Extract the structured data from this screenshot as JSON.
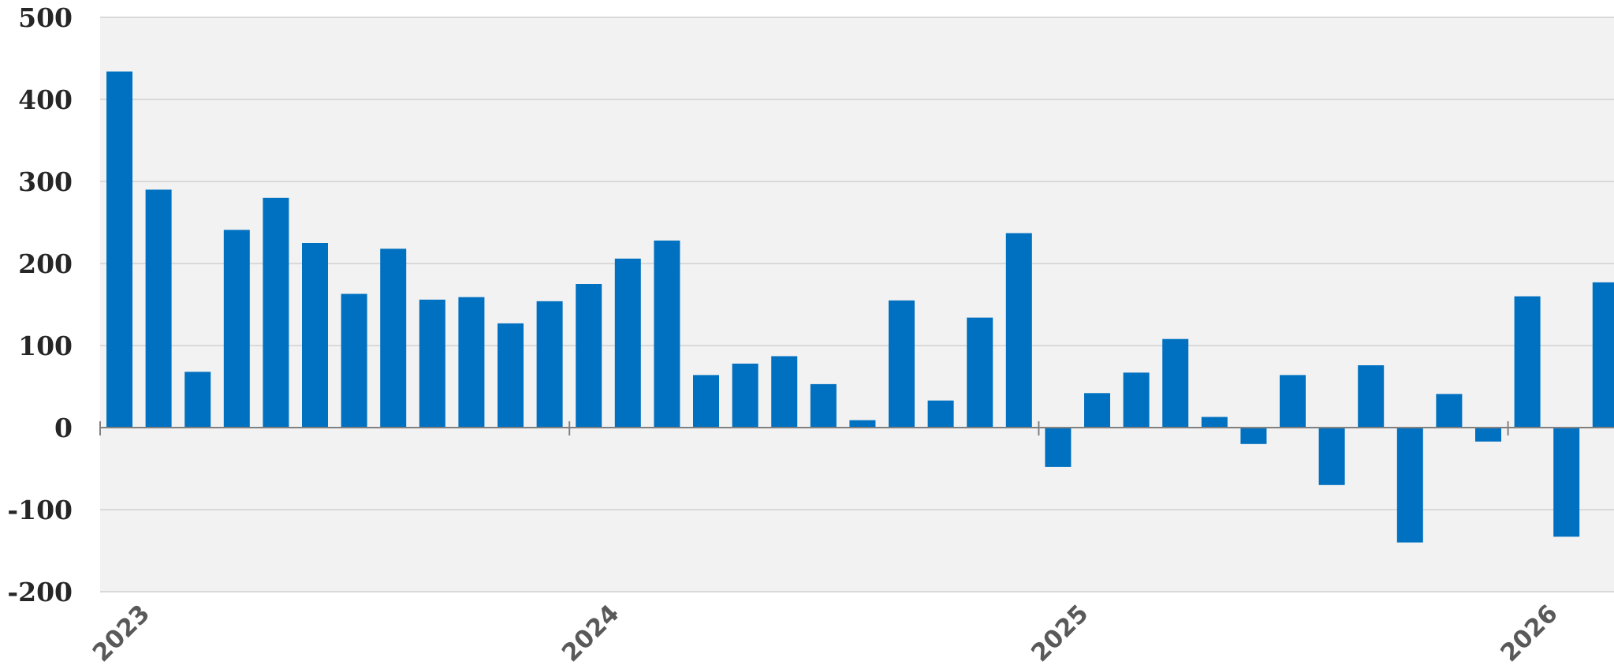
{
  "chart_data": {
    "type": "bar",
    "title": "",
    "xlabel": "",
    "ylabel": "",
    "ylim": [
      -200,
      500
    ],
    "yticks": [
      500,
      400,
      300,
      200,
      100,
      0,
      -100,
      -200
    ],
    "ytick_labels": [
      "500",
      "400",
      "300",
      "200",
      "100",
      "0",
      "-100",
      "-200"
    ],
    "xticks": [
      "2023",
      "2024",
      "2025",
      "2026"
    ],
    "grid": true,
    "legend": "none",
    "colors": {
      "bar": "#0070C0",
      "plot_background": "#F2F2F2",
      "gridline": "#D9D9D9",
      "zero_line": "#808080",
      "tick_text": "#262626",
      "year_text": "#595959"
    },
    "x": [
      "2023-01",
      "2023-02",
      "2023-03",
      "2023-04",
      "2023-05",
      "2023-06",
      "2023-07",
      "2023-08",
      "2023-09",
      "2023-10",
      "2023-11",
      "2023-12",
      "2024-01",
      "2024-02",
      "2024-03",
      "2024-04",
      "2024-05",
      "2024-06",
      "2024-07",
      "2024-08",
      "2024-09",
      "2024-10",
      "2024-11",
      "2024-12",
      "2025-01",
      "2025-02",
      "2025-03",
      "2025-04",
      "2025-05",
      "2025-06",
      "2025-07",
      "2025-08",
      "2025-09",
      "2025-10",
      "2025-11",
      "2025-12",
      "2026-01",
      "2026-02",
      "2026-03"
    ],
    "values": [
      434,
      290,
      68,
      241,
      280,
      225,
      163,
      218,
      156,
      159,
      127,
      154,
      175,
      206,
      228,
      64,
      78,
      87,
      53,
      9,
      155,
      33,
      134,
      237,
      -48,
      42,
      67,
      108,
      13,
      -20,
      64,
      -70,
      76,
      -140,
      41,
      -17,
      160,
      -133,
      177
    ]
  }
}
